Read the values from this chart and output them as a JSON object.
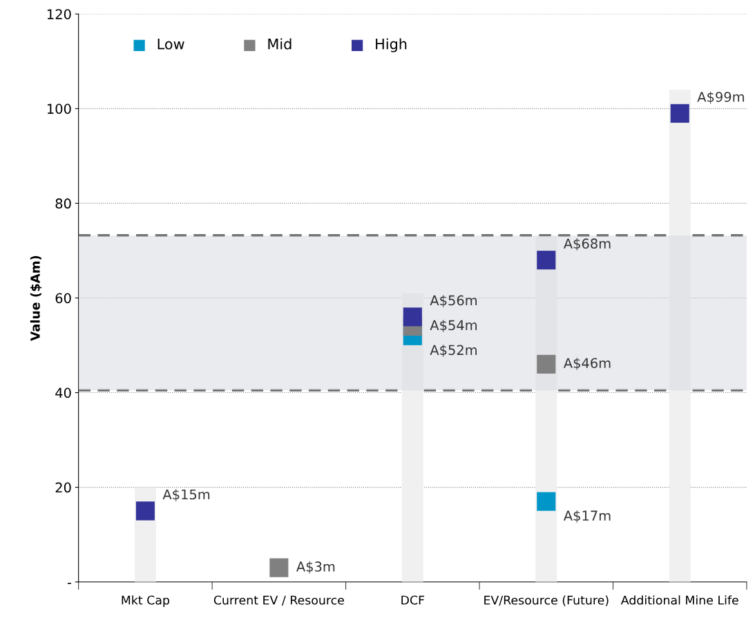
{
  "chart_data": {
    "type": "scatter",
    "ylabel": "Value ($Am)",
    "categories": [
      "Mkt Cap",
      "Current EV / Resource",
      "DCF",
      "EV/Resource (Future)",
      "Additional Mine Life"
    ],
    "series": [
      {
        "type": "bar",
        "color": "#f0f0f0",
        "values": [
          20,
          null,
          61,
          73,
          104
        ]
      },
      {
        "name": "Low",
        "color": "#0096c8",
        "values": [
          null,
          null,
          52,
          17,
          null
        ],
        "value_labels": [
          null,
          null,
          "A$52m",
          "A$17m",
          null
        ]
      },
      {
        "name": "Mid",
        "color": "#808080",
        "values": [
          null,
          3,
          54,
          46,
          null
        ],
        "value_labels": [
          null,
          "A$3m",
          "A$54m",
          "A$46m",
          null
        ]
      },
      {
        "name": "High",
        "color": "#333399",
        "values": [
          15,
          null,
          56,
          68,
          99
        ],
        "value_labels": [
          "A$15m",
          null,
          "A$56m",
          "A$68m",
          "A$99m"
        ]
      }
    ],
    "ylim": [
      0,
      120
    ],
    "yticks": [
      {
        "value": 0,
        "label": "-"
      },
      20,
      40,
      60,
      80,
      100,
      120
    ],
    "bands": [
      {
        "axis": "y",
        "from": 40.5,
        "to": 73.2,
        "color": "#d4d8e0"
      }
    ],
    "ref_lines": [
      {
        "axis": "y",
        "value": 73.2,
        "color": "#555555",
        "line_style": "dashed"
      },
      {
        "axis": "y",
        "value": 40.5,
        "color": "#555555",
        "line_style": "dashed"
      }
    ],
    "grid": "y",
    "legend": "top left",
    "marker": "square"
  }
}
